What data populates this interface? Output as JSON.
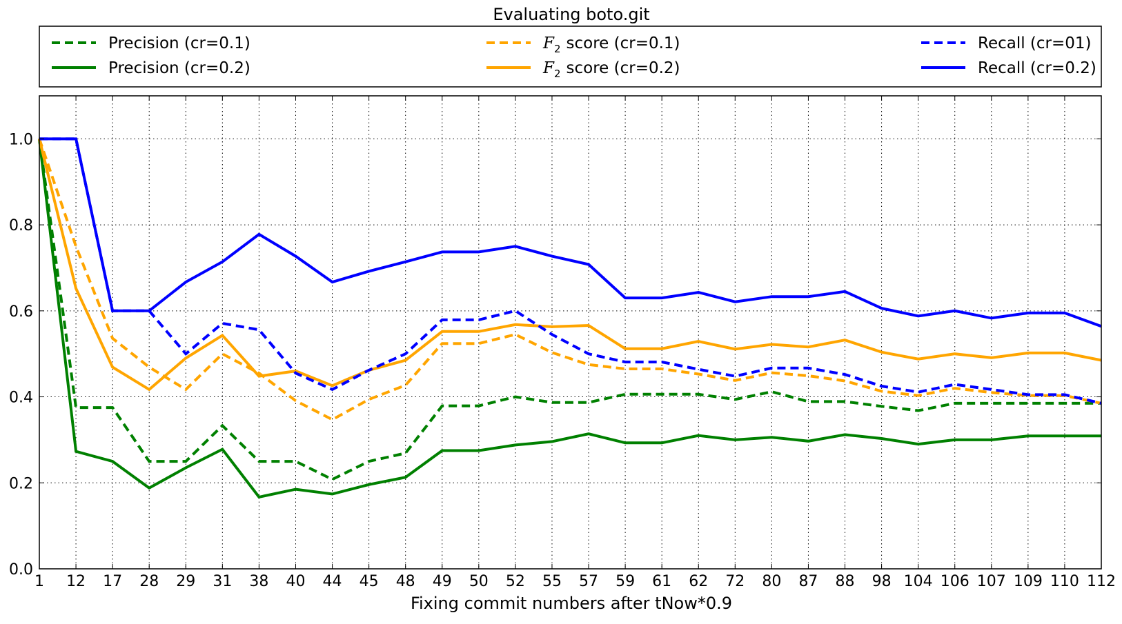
{
  "chart_data": {
    "type": "line",
    "title": "Evaluating boto.git",
    "xlabel": "Fixing commit numbers after tNow*0.9",
    "ylabel": "",
    "categories": [
      "1",
      "12",
      "17",
      "28",
      "29",
      "31",
      "38",
      "40",
      "44",
      "45",
      "48",
      "49",
      "50",
      "52",
      "55",
      "57",
      "59",
      "61",
      "62",
      "72",
      "80",
      "87",
      "88",
      "98",
      "104",
      "106",
      "107",
      "109",
      "110",
      "112"
    ],
    "ylim": [
      0.0,
      1.1
    ],
    "yticks": [
      "0.0",
      "0.2",
      "0.4",
      "0.6",
      "0.8",
      "1.0"
    ],
    "grid": true,
    "legend_placement": "top",
    "series": [
      {
        "name": "Precision (cr=0.1)",
        "color": "#008000",
        "style": "dashed",
        "values": [
          1.0,
          0.375,
          0.375,
          0.25,
          0.25,
          0.333,
          0.25,
          0.25,
          0.208,
          0.25,
          0.269,
          0.379,
          0.379,
          0.4,
          0.387,
          0.387,
          0.406,
          0.406,
          0.406,
          0.394,
          0.412,
          0.389,
          0.389,
          0.378,
          0.368,
          0.385,
          0.385,
          0.385,
          0.385,
          0.385
        ]
      },
      {
        "name": "Precision (cr=0.2)",
        "color": "#008000",
        "style": "solid",
        "values": [
          1.0,
          0.273,
          0.25,
          0.188,
          0.235,
          0.278,
          0.167,
          0.185,
          0.174,
          0.196,
          0.213,
          0.275,
          0.275,
          0.288,
          0.296,
          0.314,
          0.293,
          0.293,
          0.31,
          0.3,
          0.306,
          0.297,
          0.312,
          0.303,
          0.29,
          0.3,
          0.3,
          0.309,
          0.309,
          0.309
        ]
      },
      {
        "name": "score (cr=0.1)",
        "math": "F",
        "sub": "2",
        "color": "#FFA500",
        "style": "dashed",
        "values": [
          1.0,
          0.75,
          0.536,
          0.469,
          0.417,
          0.5,
          0.455,
          0.391,
          0.347,
          0.394,
          0.427,
          0.524,
          0.524,
          0.545,
          0.503,
          0.475,
          0.465,
          0.465,
          0.453,
          0.438,
          0.456,
          0.449,
          0.437,
          0.413,
          0.403,
          0.42,
          0.41,
          0.403,
          0.403,
          0.385
        ]
      },
      {
        "name": "score (cr=0.2)",
        "math": "F",
        "sub": "2",
        "color": "#FFA500",
        "style": "solid",
        "values": [
          1.0,
          0.652,
          0.469,
          0.417,
          0.49,
          0.543,
          0.448,
          0.46,
          0.426,
          0.462,
          0.485,
          0.552,
          0.552,
          0.568,
          0.563,
          0.566,
          0.512,
          0.512,
          0.529,
          0.511,
          0.522,
          0.516,
          0.532,
          0.504,
          0.488,
          0.5,
          0.491,
          0.502,
          0.502,
          0.485
        ]
      },
      {
        "name": "Recall (cr=01)",
        "color": "#0000FF",
        "style": "dashed",
        "values": [
          1.0,
          1.0,
          0.6,
          0.6,
          0.5,
          0.571,
          0.556,
          0.455,
          0.417,
          0.462,
          0.5,
          0.579,
          0.579,
          0.6,
          0.545,
          0.5,
          0.481,
          0.481,
          0.464,
          0.448,
          0.467,
          0.467,
          0.452,
          0.425,
          0.411,
          0.429,
          0.417,
          0.405,
          0.405,
          0.385
        ]
      },
      {
        "name": "Recall (cr=0.2)",
        "color": "#0000FF",
        "style": "solid",
        "values": [
          1.0,
          1.0,
          0.6,
          0.6,
          0.667,
          0.714,
          0.778,
          0.727,
          0.667,
          0.692,
          0.714,
          0.737,
          0.737,
          0.75,
          0.727,
          0.708,
          0.63,
          0.63,
          0.643,
          0.621,
          0.633,
          0.633,
          0.645,
          0.606,
          0.588,
          0.6,
          0.583,
          0.595,
          0.595,
          0.564
        ]
      }
    ]
  }
}
